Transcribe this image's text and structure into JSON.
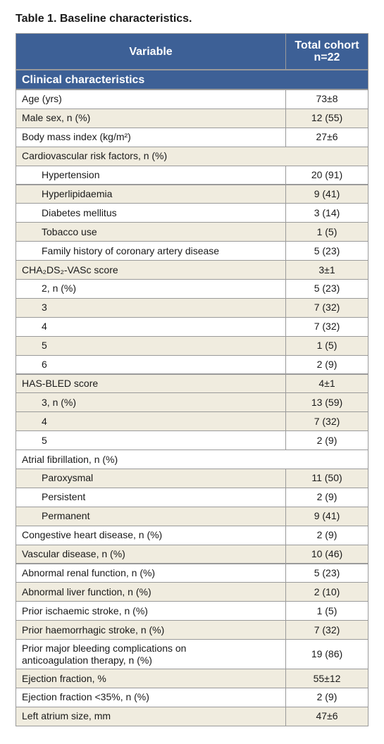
{
  "title": "Table 1. Baseline characteristics.",
  "table": {
    "header": {
      "variable": "Variable",
      "value": [
        "Total cohort",
        "n=22"
      ]
    },
    "section": "Clinical characteristics",
    "header_color": "#3d6096",
    "shade_color": "#f0ecdf",
    "rows": [
      {
        "label": "Age (yrs)",
        "value": "73±8",
        "indent": false,
        "shaded": false
      },
      {
        "label": "Male sex, n (%)",
        "value": "12 (55)",
        "indent": false,
        "shaded": true
      },
      {
        "label": "Body mass index (kg/m²)",
        "value": "27±6",
        "indent": false,
        "shaded": false
      },
      {
        "label": "Cardiovascular risk factors, n (%)",
        "indent": false,
        "shaded": true
      },
      {
        "label": "Hypertension",
        "value": "20 (91)",
        "indent": true,
        "shaded": false
      },
      {
        "label": "Hyperlipidaemia",
        "value": "9 (41)",
        "indent": true,
        "shaded": true
      },
      {
        "label": "Diabetes mellitus",
        "value": "3 (14)",
        "indent": true,
        "shaded": false
      },
      {
        "label": "Tobacco use",
        "value": "1 (5)",
        "indent": true,
        "shaded": true
      },
      {
        "label": "Family history of coronary artery disease",
        "value": "5 (23)",
        "indent": true,
        "shaded": false
      },
      {
        "label": "CHA₂DS₂-VASc  score",
        "value": "3±1",
        "indent": false,
        "shaded": true
      },
      {
        "label": "2, n (%)",
        "value": "5 (23)",
        "indent": true,
        "shaded": false
      },
      {
        "label": "3",
        "value": "7 (32)",
        "indent": true,
        "shaded": true
      },
      {
        "label": "4",
        "value": "7 (32)",
        "indent": true,
        "shaded": false
      },
      {
        "label": "5",
        "value": "1 (5)",
        "indent": true,
        "shaded": true
      },
      {
        "label": "6",
        "value": "2 (9)",
        "indent": true,
        "shaded": false
      },
      {
        "label": "HAS-BLED score",
        "value": "4±1",
        "indent": false,
        "shaded": true
      },
      {
        "label": "3, n (%)",
        "value": "13 (59)",
        "indent": true,
        "shaded": true
      },
      {
        "label": "4",
        "value": "7 (32)",
        "indent": true,
        "shaded": true
      },
      {
        "label": "5",
        "value": "2 (9)",
        "indent": true,
        "shaded": false
      },
      {
        "label": "Atrial fibrillation, n (%)",
        "indent": false,
        "shaded": false
      },
      {
        "label": "Paroxysmal",
        "value": "11 (50)",
        "indent": true,
        "shaded": true
      },
      {
        "label": "Persistent",
        "value": "2 (9)",
        "indent": true,
        "shaded": false
      },
      {
        "label": "Permanent",
        "value": "9 (41)",
        "indent": true,
        "shaded": true
      },
      {
        "label": "Congestive heart disease, n (%)",
        "value": "2 (9)",
        "indent": false,
        "shaded": false
      },
      {
        "label": "Vascular disease, n (%)",
        "value": "10 (46)",
        "indent": false,
        "shaded": true
      },
      {
        "label": "Abnormal renal function, n (%)",
        "value": "5 (23)",
        "indent": false,
        "shaded": false
      },
      {
        "label": "Abnormal liver function, n (%)",
        "value": "2 (10)",
        "indent": false,
        "shaded": true
      },
      {
        "label": "Prior ischaemic stroke, n (%)",
        "value": "1 (5)",
        "indent": false,
        "shaded": false
      },
      {
        "label": "Prior haemorrhagic stroke, n (%)",
        "value": "7 (32)",
        "indent": false,
        "shaded": true
      },
      {
        "label": [
          "Prior major bleeding complications on",
          "anticoagulation therapy, n (%)"
        ],
        "value": "19 (86)",
        "indent": false,
        "shaded": false
      },
      {
        "label": "Ejection fraction, %",
        "value": "55±12",
        "indent": false,
        "shaded": true
      },
      {
        "label": "Ejection fraction <35%, n (%)",
        "value": "2 (9)",
        "indent": false,
        "shaded": false
      },
      {
        "label": "Left atrium size, mm",
        "value": "47±6",
        "indent": false,
        "shaded": true
      }
    ]
  }
}
